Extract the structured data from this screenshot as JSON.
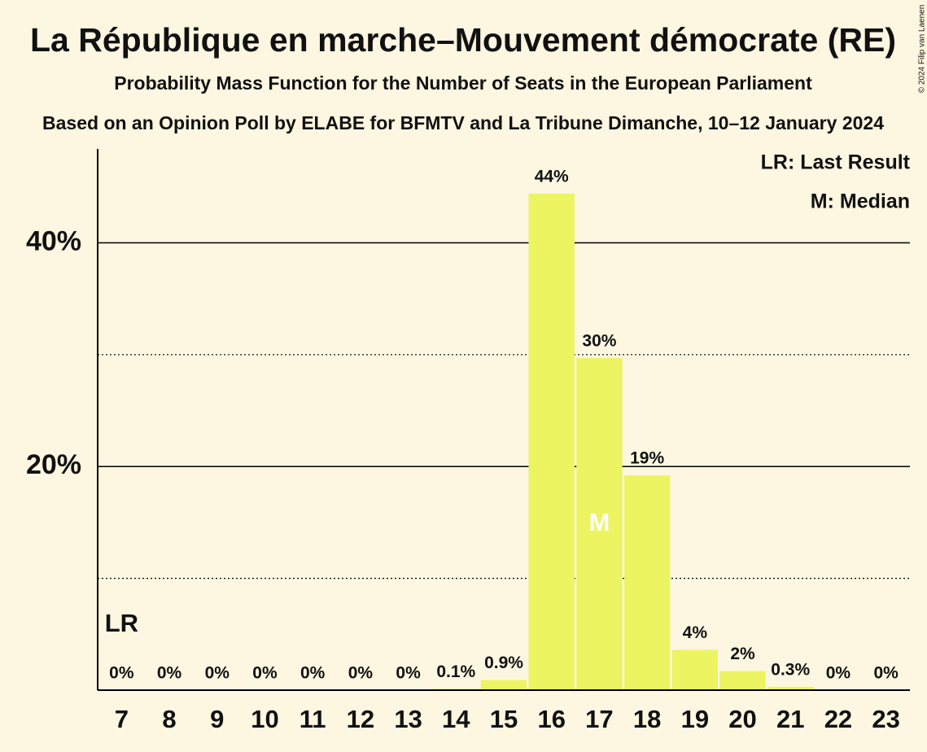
{
  "chart_data": {
    "type": "bar",
    "title": "La République en marche–Mouvement démocrate (RE)",
    "subtitle": "Probability Mass Function for the Number of Seats in the European Parliament",
    "subtitle2": "Based on an Opinion Poll by ELABE for BFMTV and La Tribune Dimanche, 10–12 January 2024",
    "copyright": "© 2024 Filip van Laenen",
    "categories": [
      "7",
      "8",
      "9",
      "10",
      "11",
      "12",
      "13",
      "14",
      "15",
      "16",
      "17",
      "18",
      "19",
      "20",
      "21",
      "22",
      "23"
    ],
    "values": [
      0,
      0,
      0,
      0,
      0,
      0,
      0,
      0.1,
      0.9,
      44.4,
      29.7,
      19.2,
      3.6,
      1.7,
      0.3,
      0,
      0
    ],
    "value_labels": [
      "0%",
      "0%",
      "0%",
      "0%",
      "0%",
      "0%",
      "0%",
      "0.1%",
      "0.9%",
      "44%",
      "30%",
      "19%",
      "4%",
      "2%",
      "0.3%",
      "0%",
      "0%"
    ],
    "color": "#ecf462",
    "ylim": [
      0,
      48.4
    ],
    "yticks": [
      {
        "value": 20,
        "label": "20%"
      },
      {
        "value": 40,
        "label": "40%"
      }
    ],
    "minor_yticks": [
      10,
      30
    ],
    "grid": true,
    "annotations": [
      {
        "text": "LR",
        "category": "7"
      },
      {
        "text": "M",
        "category": "17"
      }
    ],
    "legend": [
      "LR: Last Result",
      "M: Median"
    ],
    "legend_position": "top-right"
  }
}
